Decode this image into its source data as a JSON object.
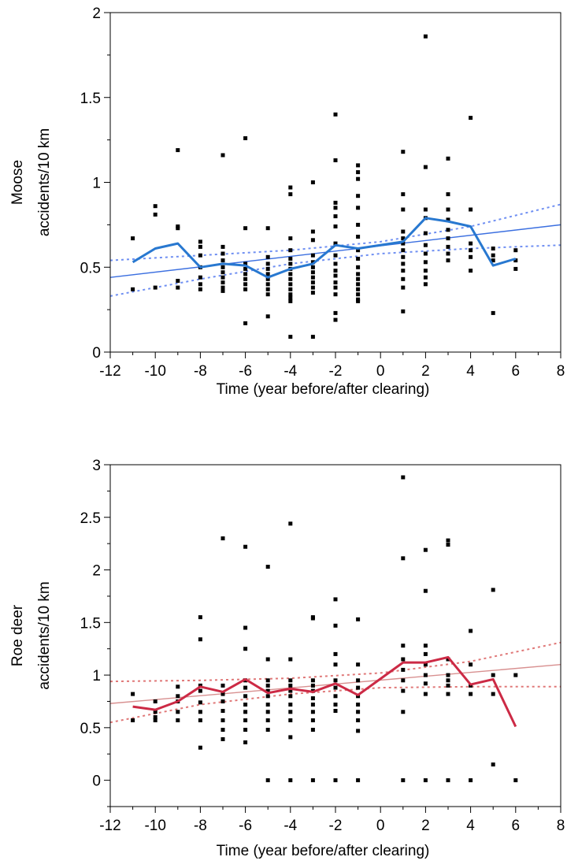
{
  "chart_data": [
    {
      "type": "scatter",
      "title": "",
      "xlabel": "Time (year before/after clearing)",
      "ylabel_lines": [
        "Moose",
        "accidents/10 km"
      ],
      "xlim": [
        -12,
        8
      ],
      "ylim": [
        0,
        2
      ],
      "xticks": [
        -12,
        -10,
        -8,
        -6,
        -4,
        -2,
        0,
        2,
        4,
        6,
        8
      ],
      "yticks": [
        0,
        0.5,
        1,
        1.5,
        2
      ],
      "ytick_labels": [
        "0",
        "0.5",
        "1",
        "1.5",
        "2"
      ],
      "grid": false,
      "colors": {
        "points": "#000000",
        "mean_line": "#2878d0",
        "fit_line": "#3b6fe0",
        "ci_line": "#6f8ff2"
      },
      "points": [
        [
          -11,
          0.67
        ],
        [
          -11,
          0.37
        ],
        [
          -10,
          0.86
        ],
        [
          -10,
          0.81
        ],
        [
          -10,
          0.38
        ],
        [
          -9,
          1.19
        ],
        [
          -9,
          0.74
        ],
        [
          -9,
          0.73
        ],
        [
          -9,
          0.42
        ],
        [
          -9,
          0.38
        ],
        [
          -8,
          0.65
        ],
        [
          -8,
          0.62
        ],
        [
          -8,
          0.57
        ],
        [
          -8,
          0.5
        ],
        [
          -8,
          0.44
        ],
        [
          -8,
          0.4
        ],
        [
          -8,
          0.37
        ],
        [
          -7,
          1.16
        ],
        [
          -7,
          0.62
        ],
        [
          -7,
          0.58
        ],
        [
          -7,
          0.54
        ],
        [
          -7,
          0.5
        ],
        [
          -7,
          0.47
        ],
        [
          -7,
          0.44
        ],
        [
          -7,
          0.41
        ],
        [
          -7,
          0.38
        ],
        [
          -7,
          0.36
        ],
        [
          -6,
          1.26
        ],
        [
          -6,
          0.73
        ],
        [
          -6,
          0.52
        ],
        [
          -6,
          0.49
        ],
        [
          -6,
          0.46
        ],
        [
          -6,
          0.43
        ],
        [
          -6,
          0.4
        ],
        [
          -6,
          0.37
        ],
        [
          -6,
          0.17
        ],
        [
          -5,
          0.73
        ],
        [
          -5,
          0.56
        ],
        [
          -5,
          0.52
        ],
        [
          -5,
          0.49
        ],
        [
          -5,
          0.46
        ],
        [
          -5,
          0.43
        ],
        [
          -5,
          0.4
        ],
        [
          -5,
          0.37
        ],
        [
          -5,
          0.34
        ],
        [
          -5,
          0.21
        ],
        [
          -4,
          0.97
        ],
        [
          -4,
          0.93
        ],
        [
          -4,
          0.67
        ],
        [
          -4,
          0.6
        ],
        [
          -4,
          0.55
        ],
        [
          -4,
          0.52
        ],
        [
          -4,
          0.49
        ],
        [
          -4,
          0.46
        ],
        [
          -4,
          0.43
        ],
        [
          -4,
          0.4
        ],
        [
          -4,
          0.37
        ],
        [
          -4,
          0.34
        ],
        [
          -4,
          0.32
        ],
        [
          -4,
          0.3
        ],
        [
          -4,
          0.09
        ],
        [
          -3,
          1.0
        ],
        [
          -3,
          0.71
        ],
        [
          -3,
          0.66
        ],
        [
          -3,
          0.57
        ],
        [
          -3,
          0.53
        ],
        [
          -3,
          0.5
        ],
        [
          -3,
          0.47
        ],
        [
          -3,
          0.44
        ],
        [
          -3,
          0.41
        ],
        [
          -3,
          0.38
        ],
        [
          -3,
          0.35
        ],
        [
          -3,
          0.09
        ],
        [
          -2,
          1.4
        ],
        [
          -2,
          1.13
        ],
        [
          -2,
          0.88
        ],
        [
          -2,
          0.85
        ],
        [
          -2,
          0.8
        ],
        [
          -2,
          0.74
        ],
        [
          -2,
          0.64
        ],
        [
          -2,
          0.57
        ],
        [
          -2,
          0.52
        ],
        [
          -2,
          0.48
        ],
        [
          -2,
          0.45
        ],
        [
          -2,
          0.41
        ],
        [
          -2,
          0.38
        ],
        [
          -2,
          0.34
        ],
        [
          -2,
          0.23
        ],
        [
          -2,
          0.19
        ],
        [
          -1,
          1.1
        ],
        [
          -1,
          1.06
        ],
        [
          -1,
          1.02
        ],
        [
          -1,
          0.92
        ],
        [
          -1,
          0.85
        ],
        [
          -1,
          0.75
        ],
        [
          -1,
          0.68
        ],
        [
          -1,
          0.6
        ],
        [
          -1,
          0.55
        ],
        [
          -1,
          0.5
        ],
        [
          -1,
          0.46
        ],
        [
          -1,
          0.43
        ],
        [
          -1,
          0.4
        ],
        [
          -1,
          0.37
        ],
        [
          -1,
          0.34
        ],
        [
          -1,
          0.31
        ],
        [
          -1,
          0.3
        ],
        [
          1,
          1.18
        ],
        [
          1,
          0.93
        ],
        [
          1,
          0.84
        ],
        [
          1,
          0.71
        ],
        [
          1,
          0.67
        ],
        [
          1,
          0.64
        ],
        [
          1,
          0.6
        ],
        [
          1,
          0.56
        ],
        [
          1,
          0.52
        ],
        [
          1,
          0.48
        ],
        [
          1,
          0.43
        ],
        [
          1,
          0.38
        ],
        [
          1,
          0.24
        ],
        [
          2,
          1.86
        ],
        [
          2,
          1.09
        ],
        [
          2,
          0.84
        ],
        [
          2,
          0.79
        ],
        [
          2,
          0.7
        ],
        [
          2,
          0.63
        ],
        [
          2,
          0.58
        ],
        [
          2,
          0.53
        ],
        [
          2,
          0.48
        ],
        [
          2,
          0.44
        ],
        [
          2,
          0.4
        ],
        [
          3,
          1.14
        ],
        [
          3,
          0.93
        ],
        [
          3,
          0.84
        ],
        [
          3,
          0.78
        ],
        [
          3,
          0.72
        ],
        [
          3,
          0.67
        ],
        [
          3,
          0.62
        ],
        [
          3,
          0.58
        ],
        [
          3,
          0.54
        ],
        [
          4,
          1.38
        ],
        [
          4,
          0.84
        ],
        [
          4,
          0.64
        ],
        [
          4,
          0.6
        ],
        [
          4,
          0.56
        ],
        [
          4,
          0.48
        ],
        [
          5,
          0.61
        ],
        [
          5,
          0.57
        ],
        [
          5,
          0.54
        ],
        [
          5,
          0.23
        ],
        [
          6,
          0.6
        ],
        [
          6,
          0.54
        ],
        [
          6,
          0.49
        ]
      ],
      "mean_line": {
        "x": [
          -11,
          -10,
          -9,
          -8,
          -7,
          -6,
          -5,
          -4,
          -3,
          -2,
          -1,
          1,
          2,
          3,
          4,
          5,
          6
        ],
        "y": [
          0.53,
          0.61,
          0.64,
          0.5,
          0.52,
          0.51,
          0.44,
          0.49,
          0.52,
          0.63,
          0.61,
          0.65,
          0.79,
          0.77,
          0.74,
          0.51,
          0.55
        ]
      },
      "fit_line": {
        "x": [
          -12,
          8
        ],
        "y": [
          0.44,
          0.75
        ]
      },
      "ci_upper": {
        "x": [
          -12,
          -8,
          -4,
          0,
          4,
          8
        ],
        "y": [
          0.54,
          0.57,
          0.6,
          0.65,
          0.74,
          0.87
        ]
      },
      "ci_lower": {
        "x": [
          -12,
          -8,
          -4,
          0,
          4,
          8
        ],
        "y": [
          0.33,
          0.43,
          0.52,
          0.58,
          0.61,
          0.63
        ]
      }
    },
    {
      "type": "scatter",
      "title": "",
      "xlabel": "Time (year before/after clearing)",
      "ylabel_lines": [
        "Roe deer",
        "accidents/10 km"
      ],
      "xlim": [
        -12,
        8
      ],
      "ylim": [
        -0.25,
        3
      ],
      "xticks": [
        -12,
        -10,
        -8,
        -6,
        -4,
        -2,
        0,
        2,
        4,
        6,
        8
      ],
      "yticks": [
        0,
        0.5,
        1,
        1.5,
        2,
        2.5,
        3
      ],
      "ytick_labels": [
        "0",
        "0.5",
        "1",
        "1.5",
        "2",
        "2.5",
        "3"
      ],
      "grid": false,
      "colors": {
        "points": "#000000",
        "mean_line": "#cc2a45",
        "fit_line": "#d89090",
        "ci_line": "#e07878"
      },
      "points": [
        [
          -11,
          0.82
        ],
        [
          -11,
          0.57
        ],
        [
          -10,
          0.75
        ],
        [
          -10,
          0.65
        ],
        [
          -10,
          0.6
        ],
        [
          -10,
          0.57
        ],
        [
          -9,
          0.89
        ],
        [
          -9,
          0.8
        ],
        [
          -9,
          0.75
        ],
        [
          -9,
          0.65
        ],
        [
          -9,
          0.57
        ],
        [
          -8,
          1.55
        ],
        [
          -8,
          1.34
        ],
        [
          -8,
          0.9
        ],
        [
          -8,
          0.85
        ],
        [
          -8,
          0.74
        ],
        [
          -8,
          0.65
        ],
        [
          -8,
          0.57
        ],
        [
          -8,
          0.31
        ],
        [
          -7,
          2.3
        ],
        [
          -7,
          0.9
        ],
        [
          -7,
          0.82
        ],
        [
          -7,
          0.75
        ],
        [
          -7,
          0.66
        ],
        [
          -7,
          0.57
        ],
        [
          -7,
          0.48
        ],
        [
          -7,
          0.39
        ],
        [
          -6,
          2.22
        ],
        [
          -6,
          1.45
        ],
        [
          -6,
          1.25
        ],
        [
          -6,
          0.95
        ],
        [
          -6,
          0.88
        ],
        [
          -6,
          0.8
        ],
        [
          -6,
          0.72
        ],
        [
          -6,
          0.65
        ],
        [
          -6,
          0.57
        ],
        [
          -6,
          0.48
        ],
        [
          -6,
          0.36
        ],
        [
          -5,
          2.03
        ],
        [
          -5,
          1.15
        ],
        [
          -5,
          0.95
        ],
        [
          -5,
          0.9
        ],
        [
          -5,
          0.85
        ],
        [
          -5,
          0.8
        ],
        [
          -5,
          0.72
        ],
        [
          -5,
          0.65
        ],
        [
          -5,
          0.57
        ],
        [
          -5,
          0.48
        ],
        [
          -5,
          0.0
        ],
        [
          -4,
          2.44
        ],
        [
          -4,
          1.15
        ],
        [
          -4,
          0.95
        ],
        [
          -4,
          0.9
        ],
        [
          -4,
          0.85
        ],
        [
          -4,
          0.8
        ],
        [
          -4,
          0.72
        ],
        [
          -4,
          0.65
        ],
        [
          -4,
          0.57
        ],
        [
          -4,
          0.41
        ],
        [
          -4,
          0.0
        ],
        [
          -3,
          1.55
        ],
        [
          -3,
          1.54
        ],
        [
          -3,
          0.95
        ],
        [
          -3,
          0.9
        ],
        [
          -3,
          0.85
        ],
        [
          -3,
          0.78
        ],
        [
          -3,
          0.72
        ],
        [
          -3,
          0.65
        ],
        [
          -3,
          0.57
        ],
        [
          -3,
          0.48
        ],
        [
          -3,
          0.0
        ],
        [
          -2,
          1.72
        ],
        [
          -2,
          1.47
        ],
        [
          -2,
          1.2
        ],
        [
          -2,
          1.1
        ],
        [
          -2,
          0.95
        ],
        [
          -2,
          0.88
        ],
        [
          -2,
          0.8
        ],
        [
          -2,
          0.72
        ],
        [
          -2,
          0.66
        ],
        [
          -2,
          0.0
        ],
        [
          -1,
          1.53
        ],
        [
          -1,
          1.1
        ],
        [
          -1,
          0.95
        ],
        [
          -1,
          0.88
        ],
        [
          -1,
          0.8
        ],
        [
          -1,
          0.72
        ],
        [
          -1,
          0.65
        ],
        [
          -1,
          0.57
        ],
        [
          -1,
          0.47
        ],
        [
          -1,
          0.0
        ],
        [
          1,
          2.88
        ],
        [
          1,
          2.11
        ],
        [
          1,
          1.28
        ],
        [
          1,
          1.15
        ],
        [
          1,
          1.05
        ],
        [
          1,
          0.95
        ],
        [
          1,
          0.85
        ],
        [
          1,
          0.65
        ],
        [
          1,
          0.0
        ],
        [
          2,
          2.19
        ],
        [
          2,
          1.8
        ],
        [
          2,
          1.28
        ],
        [
          2,
          1.2
        ],
        [
          2,
          1.1
        ],
        [
          2,
          1.0
        ],
        [
          2,
          0.92
        ],
        [
          2,
          0.82
        ],
        [
          2,
          0.0
        ],
        [
          3,
          2.28
        ],
        [
          3,
          2.24
        ],
        [
          3,
          1.15
        ],
        [
          3,
          1.0
        ],
        [
          3,
          0.95
        ],
        [
          3,
          0.9
        ],
        [
          3,
          0.82
        ],
        [
          3,
          0.0
        ],
        [
          4,
          1.42
        ],
        [
          4,
          1.1
        ],
        [
          4,
          0.9
        ],
        [
          4,
          0.82
        ],
        [
          4,
          0.0
        ],
        [
          5,
          1.81
        ],
        [
          5,
          1.0
        ],
        [
          5,
          0.82
        ],
        [
          5,
          0.15
        ],
        [
          6,
          1.0
        ],
        [
          6,
          0.0
        ]
      ],
      "mean_line": {
        "x": [
          -11,
          -10,
          -9,
          -8,
          -7,
          -6,
          -5,
          -4,
          -3,
          -2,
          -1,
          1,
          2,
          3,
          4,
          5,
          6
        ],
        "y": [
          0.7,
          0.67,
          0.75,
          0.89,
          0.84,
          0.96,
          0.83,
          0.87,
          0.84,
          0.92,
          0.81,
          1.12,
          1.12,
          1.17,
          0.91,
          0.96,
          0.51
        ]
      },
      "fit_line": {
        "x": [
          -12,
          8
        ],
        "y": [
          0.73,
          1.1
        ]
      },
      "ci_upper": {
        "x": [
          -12,
          -8,
          -4,
          0,
          4,
          8
        ],
        "y": [
          0.94,
          0.95,
          0.97,
          1.02,
          1.13,
          1.31
        ]
      },
      "ci_lower": {
        "x": [
          -12,
          -8,
          -4,
          0,
          4,
          8
        ],
        "y": [
          0.55,
          0.72,
          0.82,
          0.88,
          0.89,
          0.89
        ]
      }
    }
  ]
}
